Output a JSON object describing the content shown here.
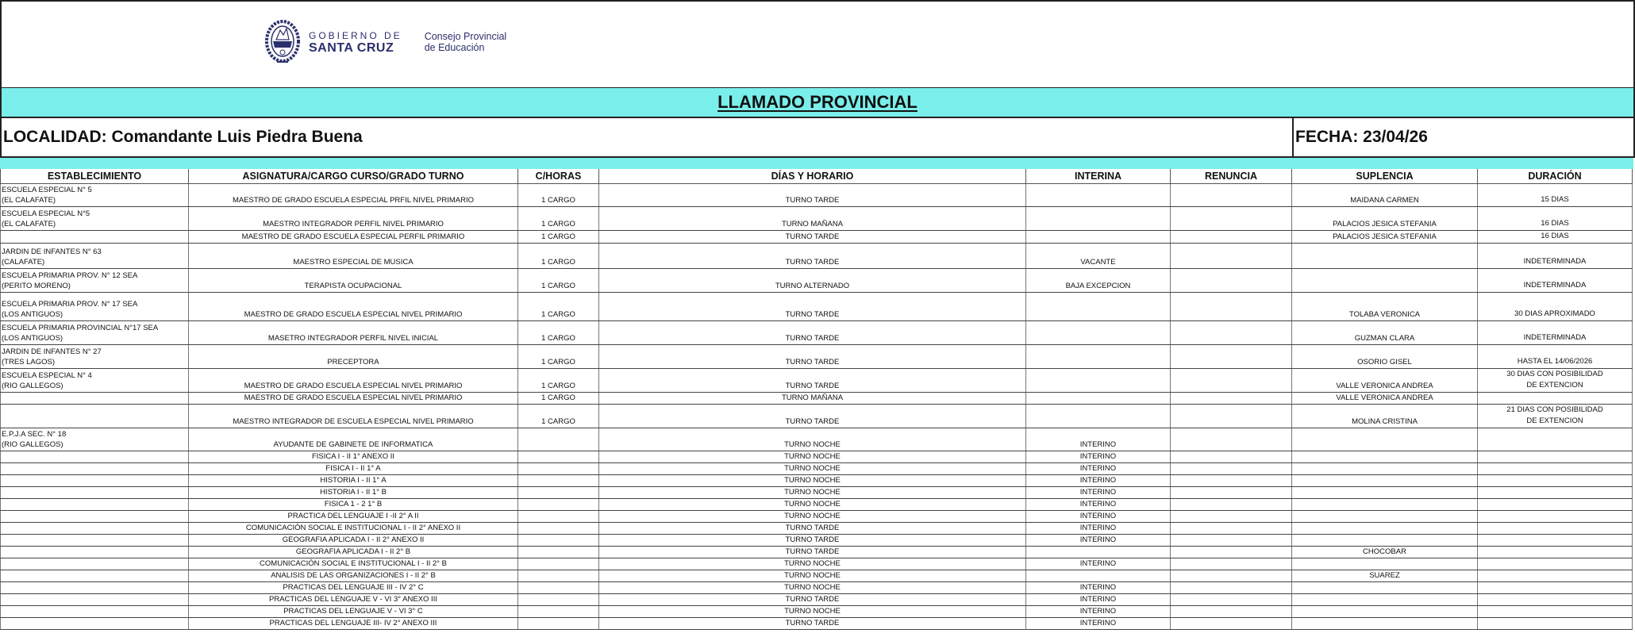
{
  "header": {
    "logo": {
      "line1": "GOBIERNO DE",
      "line2": "SANTA CRUZ",
      "org_line1": "Consejo Provincial",
      "org_line2": "de Educación",
      "color": "#2b2f6b"
    },
    "title": "LLAMADO PROVINCIAL",
    "localidad": "LOCALIDAD: Comandante Luis Piedra Buena",
    "fecha": "FECHA: 23/04/26",
    "band_color": "#7aeeea"
  },
  "table": {
    "columns": [
      "ESTABLECIMIENTO",
      "ASIGNATURA/CARGO  CURSO/GRADO  TURNO",
      "C/HORAS",
      "DÍAS Y HORARIO",
      "INTERINA",
      "RENUNCIA",
      "SUPLENCIA",
      "DURACIÓN"
    ],
    "rows": [
      {
        "est": [
          "ESCUELA ESPECIAL N° 5",
          "(EL CALAFATE)"
        ],
        "asig": "MAESTRO DE GRADO ESCUELA ESPECIAL PRFIL NIVEL  PRIMARIO",
        "horas": "1 CARGO",
        "turno": "TURNO TARDE",
        "interina": "",
        "renuncia": "",
        "suplencia": "MAIDANA CARMEN",
        "duracion": [
          "15 DIAS"
        ]
      },
      {
        "est": [
          "ESCUELA ESPECIAL N°5",
          "(EL CALAFATE)"
        ],
        "asig": "MAESTRO INTEGRADOR PERFIL NIVEL PRIMARIO",
        "horas": "1 CARGO",
        "turno": "TURNO MAÑANA",
        "interina": "",
        "renuncia": "",
        "suplencia": "PALACIOS JESICA STEFANIA",
        "duracion": [
          "16 DIAS"
        ]
      },
      {
        "est": [],
        "asig": "MAESTRO DE GRADO ESCUELA ESPECIAL PERFIL PRIMARIO",
        "horas": "1 CARGO",
        "turno": "TURNO  TARDE",
        "interina": "",
        "renuncia": "",
        "suplencia": "PALACIOS JESICA STEFANIA",
        "duracion": [
          "16 DIAS"
        ]
      },
      {
        "est": [
          "JARDIN DE INFANTES N° 63",
          "(CALAFATE)"
        ],
        "asig": "MAESTRO ESPECIAL DE MUSICA",
        "horas": "1 CARGO",
        "turno": "TURNO TARDE",
        "interina": "VACANTE",
        "renuncia": "",
        "suplencia": "",
        "duracion": [
          "INDETERMINADA"
        ]
      },
      {
        "est": [
          "ESCUELA PRIMARIA PROV. N° 12 SEA",
          "(PERITO MORENO)"
        ],
        "asig": "TERAPISTA OCUPACIONAL",
        "horas": "1 CARGO",
        "turno": "TURNO ALTERNADO",
        "interina": "BAJA EXCEPCION",
        "renuncia": "",
        "suplencia": "",
        "duracion": [
          "INDETERMINADA"
        ]
      },
      {
        "est": [
          "ESCUELA PRIMARIA PROV. N° 17 SEA",
          "(LOS ANTIGUOS)"
        ],
        "asig": "MAESTRO DE GRADO ESCUELA ESPECIAL NIVEL PRIMARIO",
        "horas": "1 CARGO",
        "turno": "TURNO TARDE",
        "interina": "",
        "renuncia": "",
        "suplencia": "TOLABA VERONICA",
        "duracion": [
          "30 DIAS APROXIMADO"
        ]
      },
      {
        "est": [
          "ESCUELA PRIMARIA PROVINCIAL N°17 SEA",
          "(LOS ANTIGUOS)"
        ],
        "asig": "MASETRO INTEGRADOR PERFIL NIVEL INICIAL",
        "horas": "1 CARGO",
        "turno": "TURNO TARDE",
        "interina": "",
        "renuncia": "",
        "suplencia": "GUZMAN CLARA",
        "duracion": [
          "INDETERMINADA"
        ]
      },
      {
        "est": [
          "JARDIN DE INFANTES N° 27",
          "(TRES LAGOS)"
        ],
        "asig": "PRECEPTORA",
        "horas": "1 CARGO",
        "turno": "TURNO TARDE",
        "interina": "",
        "renuncia": "",
        "suplencia": "OSORIO GISEL",
        "duracion": [
          "HASTA EL 14/06/2026"
        ]
      },
      {
        "est": [
          "ESCUELA ESPECIAL N° 4",
          "(RIO GALLEGOS)"
        ],
        "asig": "MAESTRO DE GRADO ESCUELA ESPECIAL NIVEL PRIMARIO",
        "horas": "1 CARGO",
        "turno": "TURNO TARDE",
        "interina": "",
        "renuncia": "",
        "suplencia": "VALLE VERONICA ANDREA",
        "duracion": [
          "30 DIAS CON POSIBILIDAD",
          "DE EXTENCION"
        ]
      },
      {
        "est": [],
        "asig": "MAESTRO DE GRADO ESCUELA ESPECIAL NIVEL PRIMARIO",
        "horas": "1 CARGO",
        "turno": "TURNO MAÑANA",
        "interina": "",
        "renuncia": "",
        "suplencia": "VALLE VERONICA ANDREA",
        "duracion": []
      },
      {
        "est": [],
        "asig": "MAESTRO INTEGRADOR DE ESCUELA ESPECIAL NIVEL PRIMARIO",
        "horas": "1 CARGO",
        "turno": "TURNO TARDE",
        "interina": "",
        "renuncia": "",
        "suplencia": "MOLINA CRISTINA",
        "duracion": [
          "21 DIAS CON POSIBILIDAD",
          "DE EXTENCION"
        ]
      },
      {
        "est": [
          "E.P.J.A SEC. N° 18",
          "(RIO GALLEGOS)"
        ],
        "asig": "AYUDANTE DE GABINETE DE INFORMATICA",
        "horas": "",
        "turno": "TURNO NOCHE",
        "interina": "INTERINO",
        "renuncia": "",
        "suplencia": "",
        "duracion": []
      },
      {
        "est": [],
        "asig": "FISICA I - II 1° ANEXO II",
        "horas": "",
        "turno": "TURNO NOCHE",
        "interina": "INTERINO",
        "renuncia": "",
        "suplencia": "",
        "duracion": []
      },
      {
        "est": [],
        "asig": "FISICA I - II 1° A",
        "horas": "",
        "turno": "TURNO NOCHE",
        "interina": "INTERINO",
        "renuncia": "",
        "suplencia": "",
        "duracion": []
      },
      {
        "est": [],
        "asig": "HISTORIA I - II 1° A",
        "horas": "",
        "turno": "TURNO NOCHE",
        "interina": "INTERINO",
        "renuncia": "",
        "suplencia": "",
        "duracion": []
      },
      {
        "est": [],
        "asig": "HISTORIA I - II 1° B",
        "horas": "",
        "turno": "TURNO NOCHE",
        "interina": "INTERINO",
        "renuncia": "",
        "suplencia": "",
        "duracion": []
      },
      {
        "est": [],
        "asig": "FISICA 1 - 2 1° B",
        "horas": "",
        "turno": "TURNO NOCHE",
        "interina": "INTERINO",
        "renuncia": "",
        "suplencia": "",
        "duracion": []
      },
      {
        "est": [],
        "asig": "PRACTICA DEL LENGUAJE I -II 2° A II",
        "horas": "",
        "turno": "TURNO NOCHE",
        "interina": "INTERINO",
        "renuncia": "",
        "suplencia": "",
        "duracion": []
      },
      {
        "est": [],
        "asig": "COMUNICACIÓN SOCIAL E INSTITUCIONAL I - II 2° ANEXO II",
        "horas": "",
        "turno": "TURNO TARDE",
        "interina": "INTERINO",
        "renuncia": "",
        "suplencia": "",
        "duracion": []
      },
      {
        "est": [],
        "asig": "GEOGRAFIA APLICADA I - II  2° ANEXO II",
        "horas": "",
        "turno": "TURNO TARDE",
        "interina": "INTERINO",
        "renuncia": "",
        "suplencia": "",
        "duracion": []
      },
      {
        "est": [],
        "asig": "GEOGRAFIA APLICADA I - II  2° B",
        "horas": "",
        "turno": "TURNO TARDE",
        "interina": "",
        "renuncia": "",
        "suplencia": "CHOCOBAR",
        "duracion": []
      },
      {
        "est": [],
        "asig": "COMUNICACIÓN SOCIAL E INSTITUCIONAL I - II 2° B",
        "horas": "",
        "turno": "TURNO NOCHE",
        "interina": "INTERINO",
        "renuncia": "",
        "suplencia": "",
        "duracion": []
      },
      {
        "est": [],
        "asig": "ANALISIS DE LAS ORGANIZACIONES I - II 2° B",
        "horas": "",
        "turno": "TURNO NOCHE",
        "interina": "",
        "renuncia": "",
        "suplencia": "SUAREZ",
        "duracion": []
      },
      {
        "est": [],
        "asig": "PRACTICAS DEL LENGUAJE III - IV 2° C",
        "horas": "",
        "turno": "TURNO NOCHE",
        "interina": "INTERINO",
        "renuncia": "",
        "suplencia": "",
        "duracion": []
      },
      {
        "est": [],
        "asig": "PRACTICAS DEL LENGUAJE V - VI 3° ANEXO III",
        "horas": "",
        "turno": "TURNO TARDE",
        "interina": "INTERINO",
        "renuncia": "",
        "suplencia": "",
        "duracion": []
      },
      {
        "est": [],
        "asig": "PRACTICAS DEL LENGUAJE V - VI 3° C",
        "horas": "",
        "turno": "TURNO NOCHE",
        "interina": "INTERINO",
        "renuncia": "",
        "suplencia": "",
        "duracion": []
      },
      {
        "est": [],
        "asig": "PRACTICAS DEL LENGUAJE III- IV 2° ANEXO III",
        "horas": "",
        "turno": "TURNO TARDE",
        "interina": "INTERINO",
        "renuncia": "",
        "suplencia": "",
        "duracion": []
      }
    ]
  }
}
